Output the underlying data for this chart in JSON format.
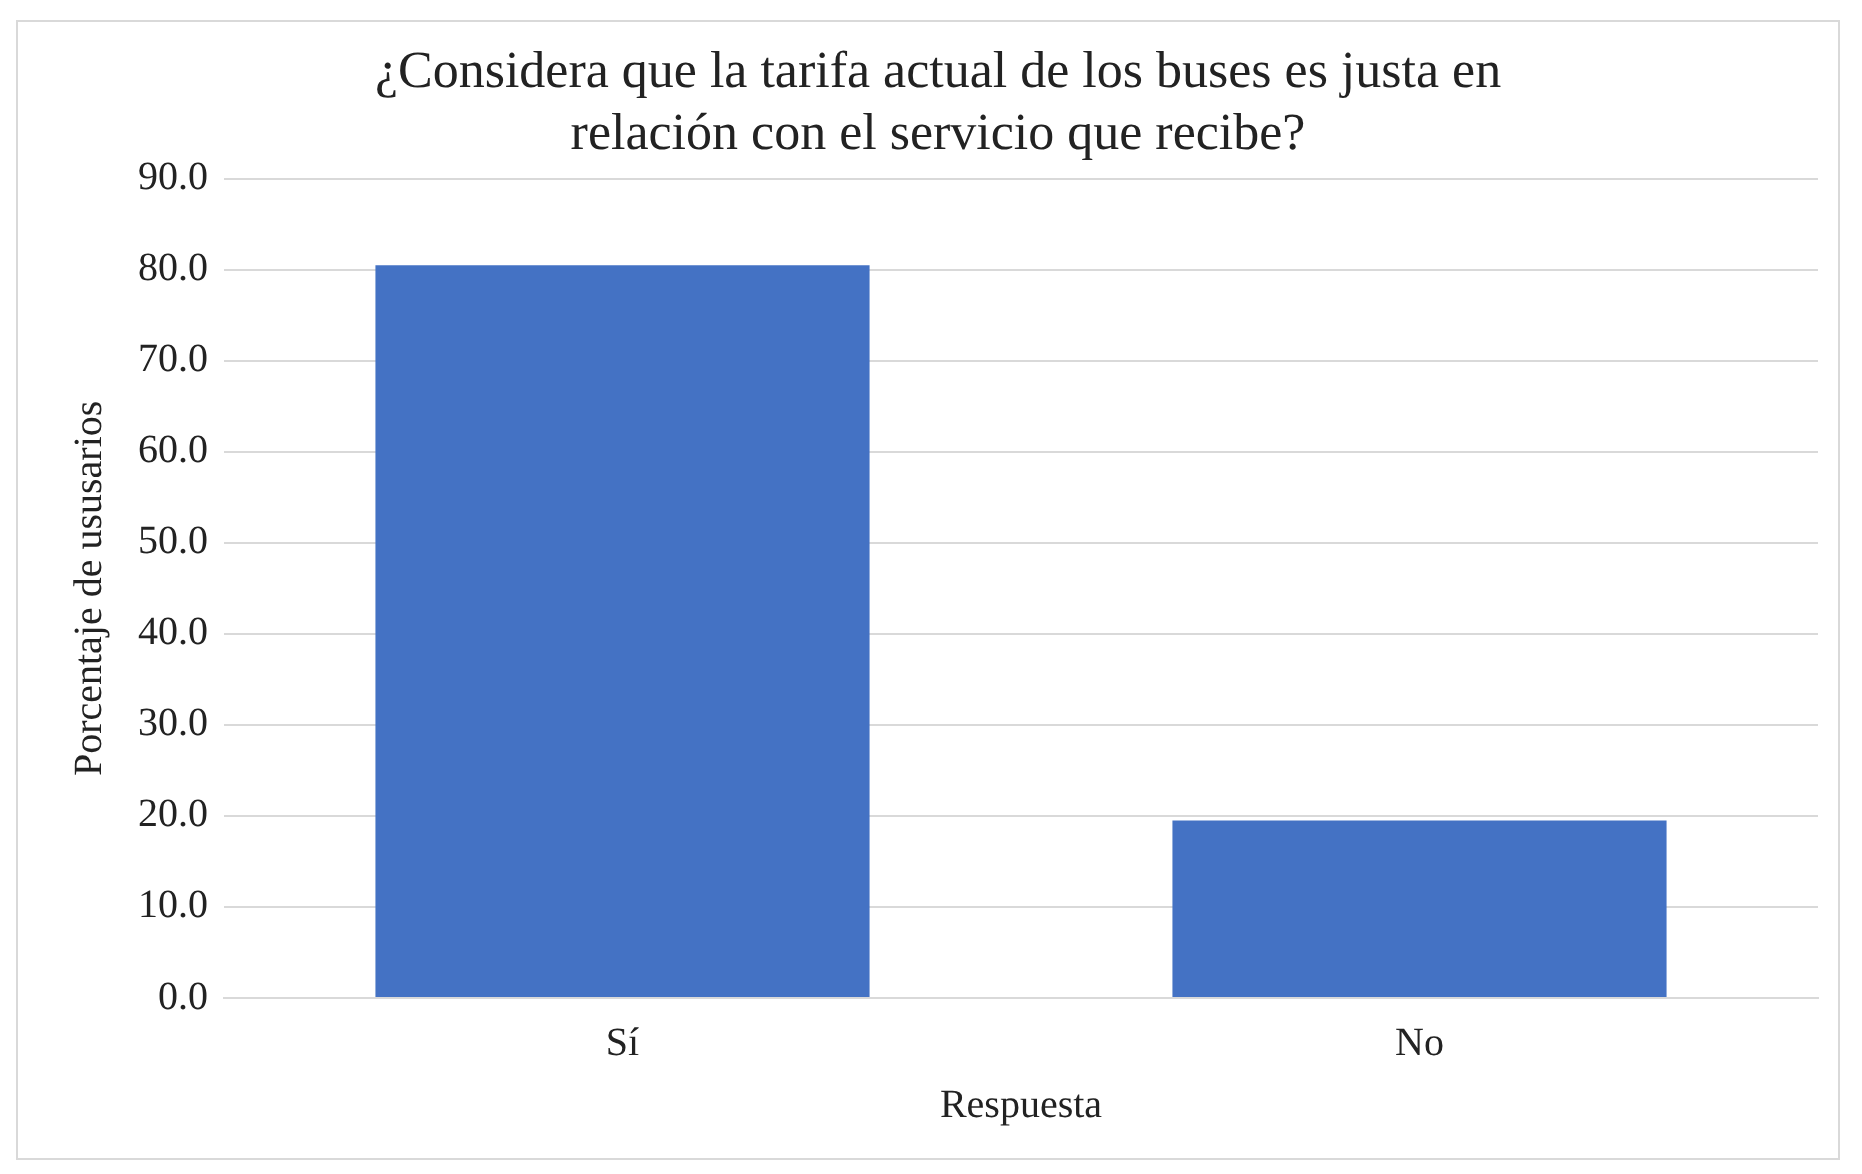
{
  "chart_data": {
    "type": "bar",
    "title": "¿Considera que la tarifa actual de los buses es justa en relación con el servicio que recibe?",
    "xlabel": "Respuesta",
    "ylabel": "Porcentaje de ususarios",
    "categories": [
      "Sí",
      "No"
    ],
    "values": [
      80.5,
      19.5
    ],
    "color": "#4472c4",
    "ylim": [
      0,
      90
    ],
    "yticks": [
      {
        "value": 0,
        "label": "0.0"
      },
      {
        "value": 10,
        "label": "10.0"
      },
      {
        "value": 20,
        "label": "20.0"
      },
      {
        "value": 30,
        "label": "30.0"
      },
      {
        "value": 40,
        "label": "40.0"
      },
      {
        "value": 50,
        "label": "50.0"
      },
      {
        "value": 60,
        "label": "60.0"
      },
      {
        "value": 70,
        "label": "70.0"
      },
      {
        "value": 80,
        "label": "80.0"
      },
      {
        "value": 90,
        "label": "90.0"
      }
    ],
    "grid": "y",
    "legend": false
  }
}
